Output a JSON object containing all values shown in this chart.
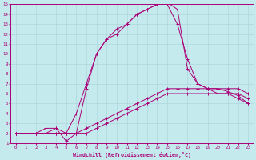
{
  "xlabel": "Windchill (Refroidissement éolien,°C)",
  "xlim": [
    -0.5,
    23.5
  ],
  "ylim": [
    1,
    15
  ],
  "xticks": [
    0,
    1,
    2,
    3,
    4,
    5,
    6,
    7,
    8,
    9,
    10,
    11,
    12,
    13,
    14,
    15,
    16,
    17,
    18,
    19,
    20,
    21,
    22,
    23
  ],
  "yticks": [
    1,
    2,
    3,
    4,
    5,
    6,
    7,
    8,
    9,
    10,
    11,
    12,
    13,
    14,
    15
  ],
  "background_color": "#c5eaed",
  "grid_color": "#a8d4d8",
  "line_color": "#aa0077",
  "line1_x": [
    0,
    1,
    2,
    3,
    4,
    5,
    6,
    7,
    8,
    9,
    10,
    11,
    12,
    13,
    14,
    15,
    16,
    17,
    18,
    19,
    20,
    21,
    22,
    23
  ],
  "line1_y": [
    2,
    2,
    2,
    2,
    2,
    2,
    2,
    2,
    2.5,
    3,
    3.5,
    4,
    4.5,
    5,
    5.5,
    6,
    6,
    6,
    6,
    6,
    6,
    6,
    6,
    5.5
  ],
  "line2_x": [
    0,
    1,
    2,
    3,
    4,
    5,
    6,
    7,
    8,
    9,
    10,
    11,
    12,
    13,
    14,
    15,
    16,
    17,
    18,
    19,
    20,
    21,
    22,
    23
  ],
  "line2_y": [
    2,
    2,
    2,
    2,
    2,
    2,
    2,
    2.5,
    3,
    3.5,
    4,
    4.5,
    5,
    5.5,
    6,
    6.5,
    6.5,
    6.5,
    6.5,
    6.5,
    6.5,
    6.5,
    6.5,
    6
  ],
  "line3_x": [
    0,
    1,
    2,
    3,
    4,
    5,
    6,
    7,
    8,
    9,
    10,
    11,
    12,
    13,
    14,
    15,
    16,
    17,
    18,
    19,
    20,
    21,
    22,
    23
  ],
  "line3_y": [
    2,
    2,
    2,
    2.5,
    2.5,
    1.2,
    2,
    6.5,
    10,
    11.5,
    12.5,
    13,
    14,
    14.5,
    15,
    15,
    13,
    9.5,
    7,
    6.5,
    6,
    6,
    5.5,
    5
  ],
  "line4_x": [
    0,
    1,
    2,
    3,
    4,
    5,
    6,
    7,
    8,
    9,
    10,
    11,
    12,
    13,
    14,
    15,
    16,
    17,
    18,
    19,
    20,
    21,
    22,
    23
  ],
  "line4_y": [
    2,
    2,
    2,
    2,
    2.5,
    2,
    4,
    7,
    10,
    11.5,
    12,
    13,
    14,
    14.5,
    15,
    15.2,
    14.5,
    8.5,
    7,
    6.5,
    6.5,
    6.2,
    5.8,
    5
  ]
}
